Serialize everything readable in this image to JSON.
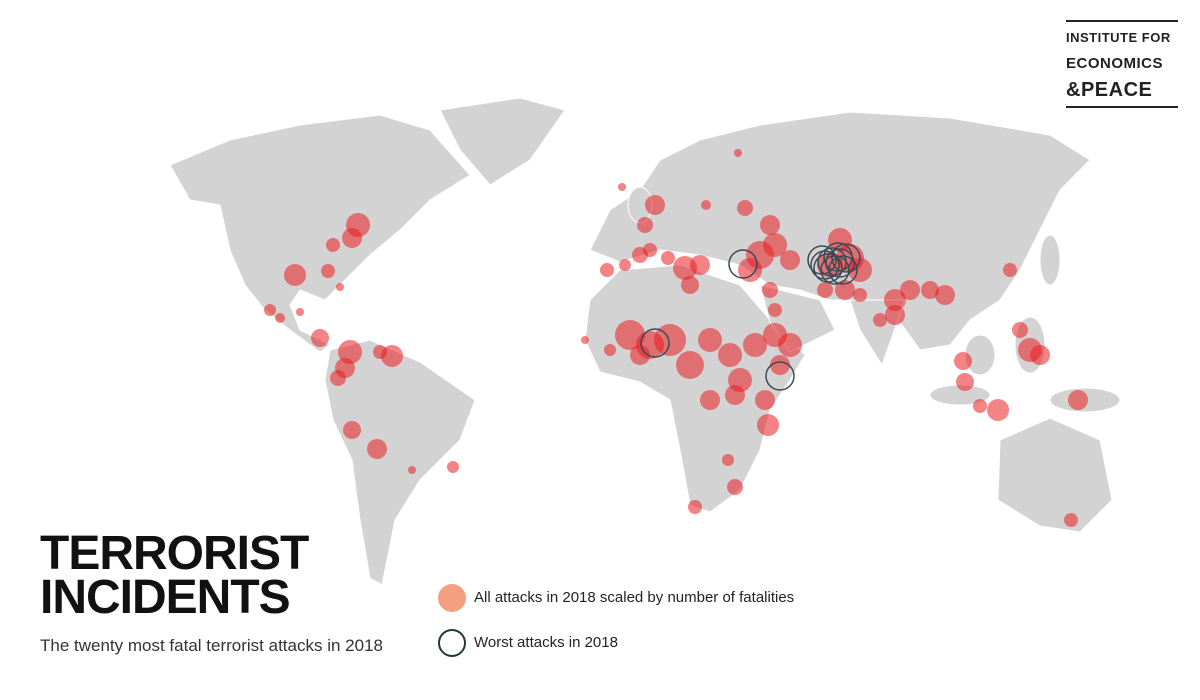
{
  "logo": {
    "lines": [
      "INSTITUTE FOR",
      "ECONOMICS",
      "&PEACE"
    ]
  },
  "title": {
    "lines": [
      "TERRORIST",
      "INCIDENTS"
    ]
  },
  "subtitle": "The twenty most fatal terrorist attacks in 2018",
  "legend": [
    {
      "label": "All attacks in 2018 scaled by number of fatalities"
    },
    {
      "label": "Worst attacks in 2018"
    }
  ]
}
